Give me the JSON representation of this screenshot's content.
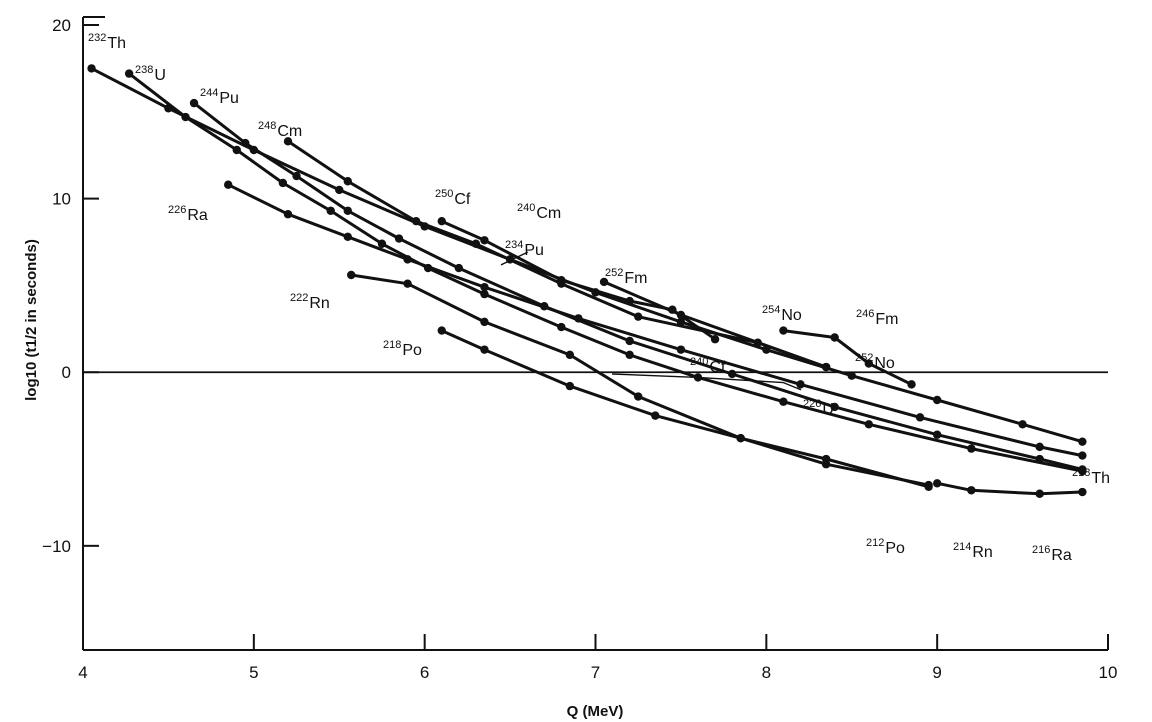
{
  "chart_data": {
    "type": "line",
    "title": "",
    "xlabel": "Q (MeV)",
    "ylabel": "log10 (t1/2 in seconds)",
    "xlim": [
      4,
      10
    ],
    "ylim": [
      -16,
      20
    ],
    "xticks": [
      "4",
      "5",
      "6",
      "7",
      "8",
      "9",
      "10"
    ],
    "yticks": [
      "20",
      "10",
      "0",
      "−10"
    ],
    "reference_line_y": 0,
    "grid": false,
    "legend": "none",
    "series": [
      {
        "points": [
          [
            4.05,
            17.5
          ],
          [
            4.5,
            15.2
          ],
          [
            5.0,
            12.8
          ],
          [
            5.5,
            10.5
          ],
          [
            6.0,
            8.4
          ],
          [
            6.5,
            6.5
          ],
          [
            7.0,
            4.6
          ],
          [
            7.5,
            2.9
          ],
          [
            8.0,
            1.3
          ],
          [
            8.5,
            -0.2
          ],
          [
            9.0,
            -1.6
          ],
          [
            9.5,
            -3.0
          ],
          [
            9.85,
            -4.0
          ]
        ]
      },
      {
        "points": [
          [
            4.27,
            17.2
          ],
          [
            4.6,
            14.7
          ],
          [
            4.9,
            12.8
          ],
          [
            5.17,
            10.9
          ],
          [
            5.45,
            9.3
          ],
          [
            5.75,
            7.4
          ],
          [
            6.02,
            6.0
          ],
          [
            6.35,
            4.5
          ],
          [
            6.8,
            2.6
          ],
          [
            7.2,
            1.0
          ],
          [
            7.6,
            -0.3
          ],
          [
            8.1,
            -1.7
          ],
          [
            8.6,
            -3.0
          ],
          [
            9.2,
            -4.4
          ],
          [
            9.85,
            -5.7
          ]
        ]
      },
      {
        "points": [
          [
            4.65,
            15.5
          ],
          [
            4.95,
            13.2
          ],
          [
            5.25,
            11.3
          ],
          [
            5.55,
            9.3
          ],
          [
            5.85,
            7.7
          ],
          [
            6.2,
            6.0
          ],
          [
            6.7,
            3.8
          ],
          [
            7.2,
            1.8
          ],
          [
            7.8,
            -0.1
          ],
          [
            8.4,
            -2.0
          ],
          [
            9.0,
            -3.6
          ],
          [
            9.6,
            -5.0
          ],
          [
            9.85,
            -5.6
          ]
        ]
      },
      {
        "points": [
          [
            4.85,
            10.8
          ],
          [
            5.2,
            9.1
          ],
          [
            5.55,
            7.8
          ],
          [
            5.9,
            6.5
          ],
          [
            6.35,
            4.9
          ],
          [
            6.9,
            3.1
          ],
          [
            7.5,
            1.3
          ],
          [
            8.2,
            -0.7
          ],
          [
            8.9,
            -2.6
          ],
          [
            9.6,
            -4.3
          ],
          [
            9.85,
            -4.8
          ]
        ]
      },
      {
        "points": [
          [
            5.57,
            5.6
          ],
          [
            5.9,
            5.1
          ],
          [
            6.35,
            2.9
          ],
          [
            6.85,
            1.0
          ],
          [
            7.25,
            -1.4
          ],
          [
            7.85,
            -3.8
          ],
          [
            8.35,
            -5.3
          ],
          [
            8.95,
            -6.5
          ]
        ]
      },
      {
        "points": [
          [
            6.1,
            2.4
          ],
          [
            6.35,
            1.3
          ],
          [
            6.85,
            -0.8
          ],
          [
            7.35,
            -2.5
          ],
          [
            7.85,
            -3.8
          ],
          [
            8.35,
            -5.0
          ],
          [
            8.95,
            -6.6
          ]
        ]
      },
      {
        "points": [
          [
            5.2,
            13.3
          ],
          [
            5.55,
            11.0
          ],
          [
            5.95,
            8.7
          ],
          [
            6.3,
            7.4
          ],
          [
            6.8,
            5.1
          ],
          [
            7.25,
            3.2
          ],
          [
            7.95,
            1.7
          ],
          [
            8.35,
            0.3
          ]
        ]
      },
      {
        "points": [
          [
            6.1,
            8.7
          ],
          [
            6.35,
            7.6
          ],
          [
            6.8,
            5.3
          ],
          [
            7.2,
            4.1
          ],
          [
            7.45,
            3.6
          ],
          [
            7.7,
            1.9
          ]
        ]
      },
      {
        "points": [
          [
            7.05,
            5.2
          ],
          [
            7.5,
            3.3
          ],
          [
            8.35,
            0.3
          ]
        ]
      },
      {
        "points": [
          [
            8.1,
            2.4
          ],
          [
            8.4,
            2.0
          ],
          [
            8.6,
            0.5
          ],
          [
            8.85,
            -0.7
          ]
        ]
      },
      {
        "points": [
          [
            6.45,
            6.2
          ],
          [
            6.6,
            6.9
          ]
        ]
      },
      {
        "points": [
          [
            7.1,
            -0.1
          ],
          [
            7.6,
            -0.3
          ],
          [
            8.1,
            -0.6
          ],
          [
            8.2,
            -1.0
          ]
        ]
      },
      {
        "points": [
          [
            9.0,
            -6.4
          ],
          [
            9.2,
            -6.8
          ],
          [
            9.6,
            -7.0
          ],
          [
            9.85,
            -6.9
          ]
        ]
      }
    ],
    "annotations": [
      {
        "mass": "232",
        "symbol": "Th"
      },
      {
        "mass": "238",
        "symbol": "U"
      },
      {
        "mass": "244",
        "symbol": "Pu"
      },
      {
        "mass": "248",
        "symbol": "Cm"
      },
      {
        "mass": "226",
        "symbol": "Ra"
      },
      {
        "mass": "250",
        "symbol": "Cf"
      },
      {
        "mass": "240",
        "symbol": "Cm"
      },
      {
        "mass": "234",
        "symbol": "Pu"
      },
      {
        "mass": "252",
        "symbol": "Fm"
      },
      {
        "mass": "222",
        "symbol": "Rn"
      },
      {
        "mass": "254",
        "symbol": "No"
      },
      {
        "mass": "246",
        "symbol": "Fm"
      },
      {
        "mass": "218",
        "symbol": "Po"
      },
      {
        "mass": "240",
        "symbol": "Cf"
      },
      {
        "mass": "252",
        "symbol": "No"
      },
      {
        "mass": "226",
        "symbol": "U"
      },
      {
        "mass": "218",
        "symbol": "Th"
      },
      {
        "mass": "212",
        "symbol": "Po"
      },
      {
        "mass": "214",
        "symbol": "Rn"
      },
      {
        "mass": "216",
        "symbol": "Ra"
      }
    ]
  }
}
